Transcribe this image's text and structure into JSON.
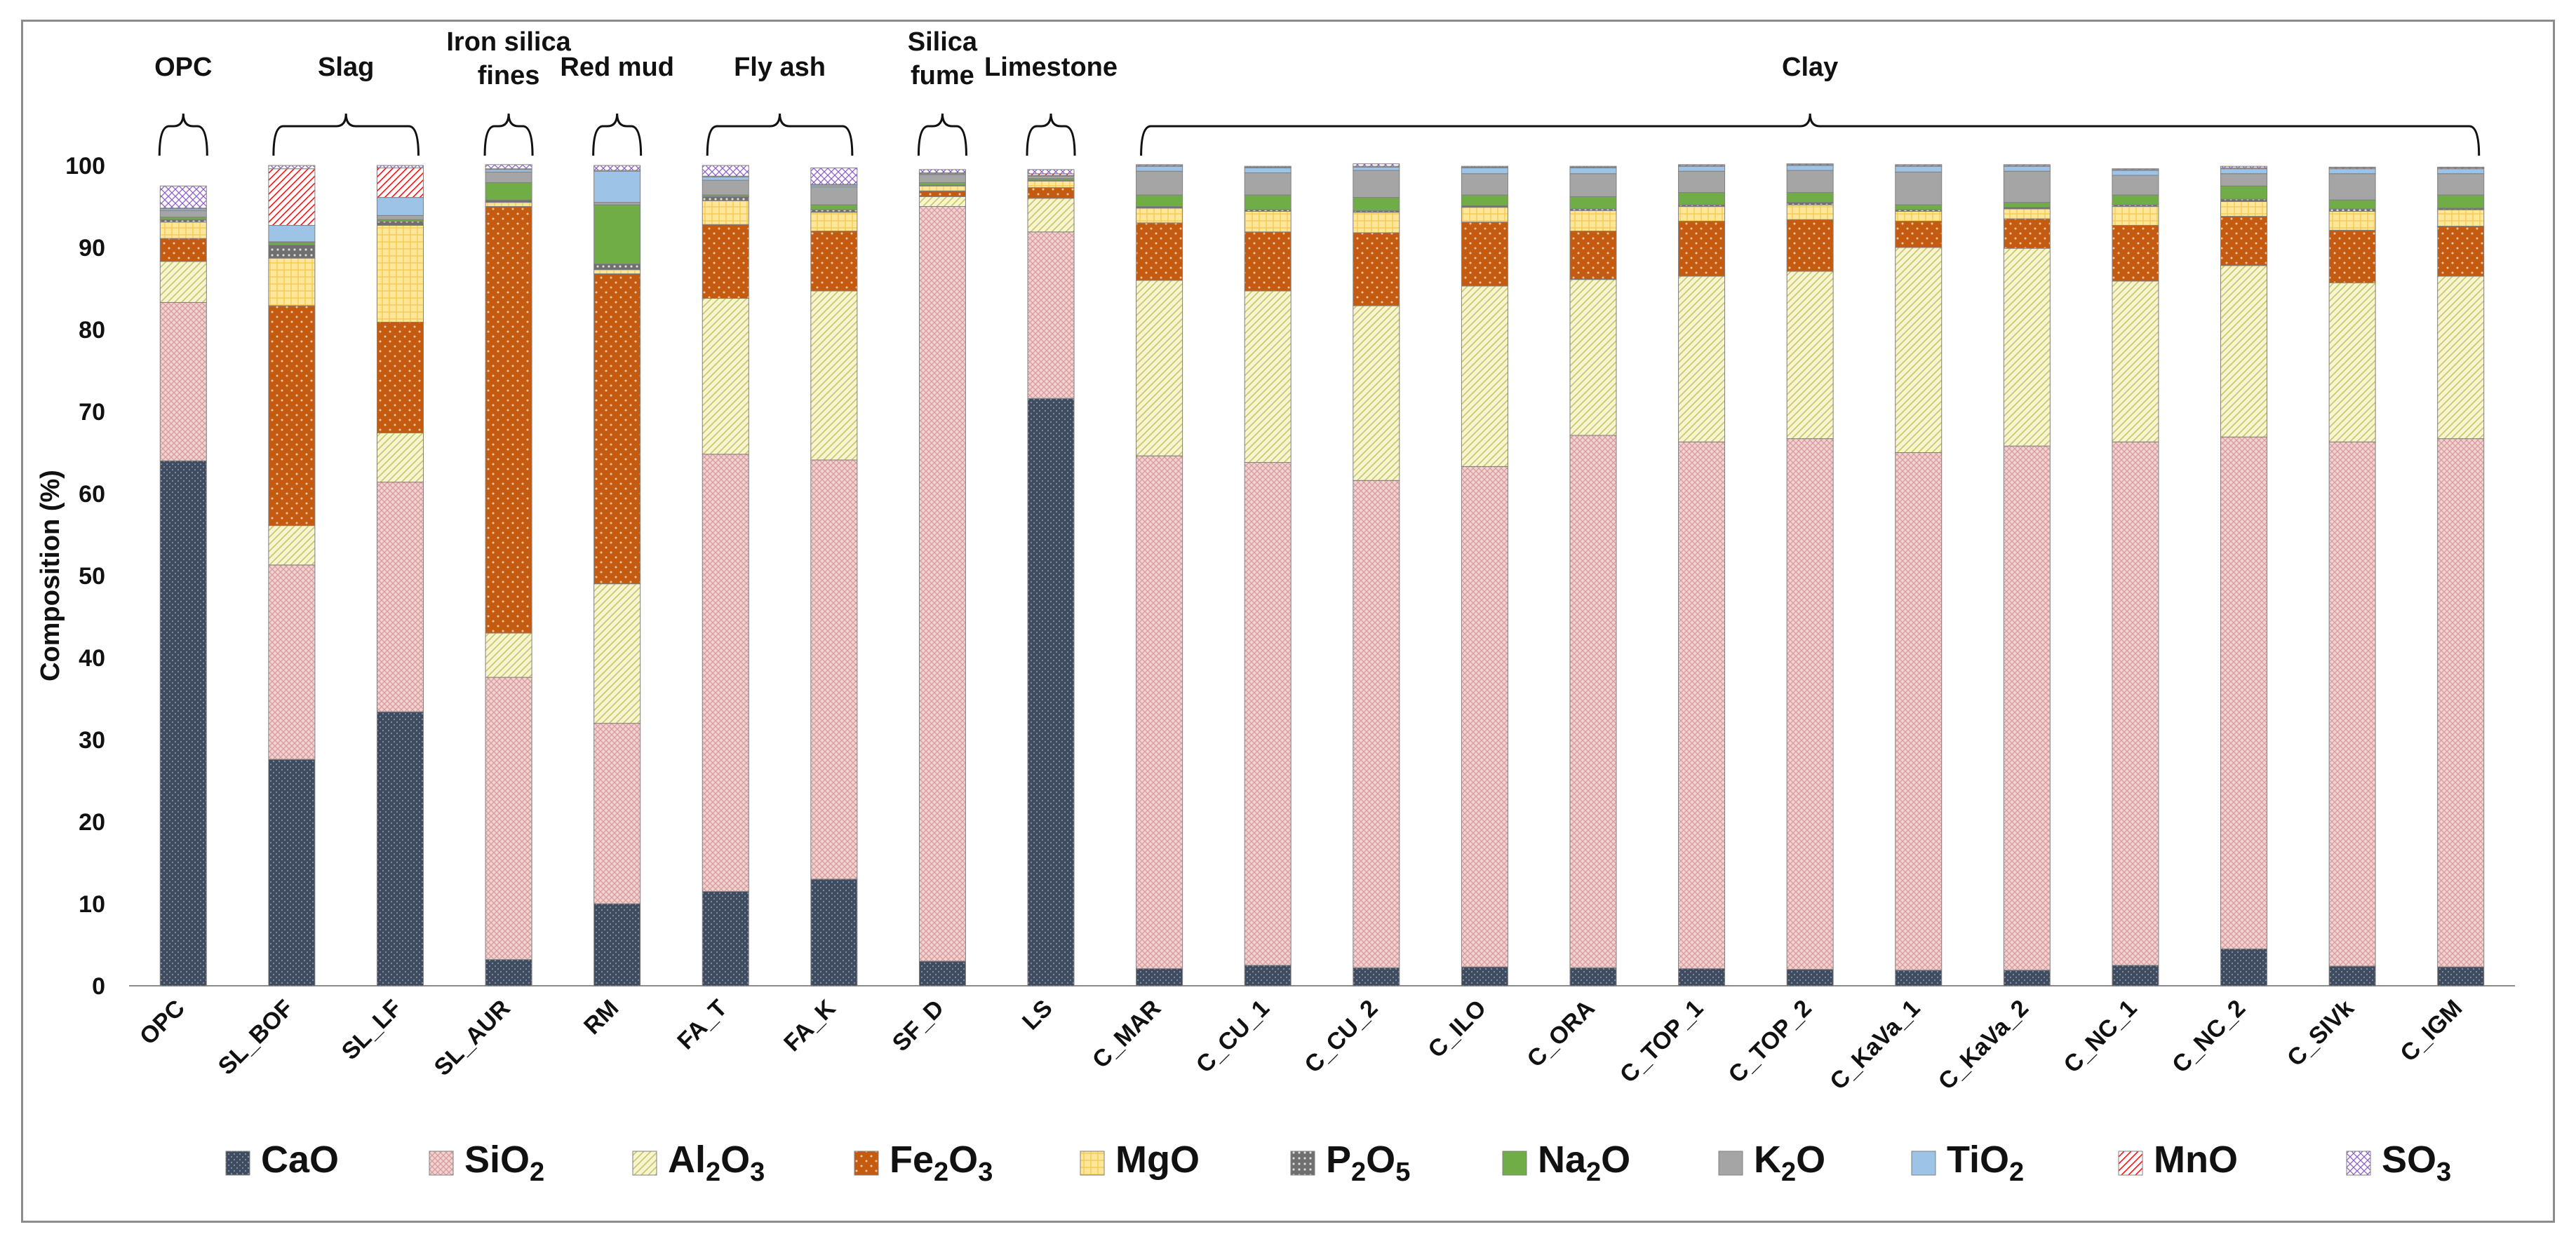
{
  "chart_data": {
    "type": "bar",
    "stacked": true,
    "ylabel": "Composition (%)",
    "ylim": [
      0,
      100
    ],
    "yticks": [
      0,
      10,
      20,
      30,
      40,
      50,
      60,
      70,
      80,
      90,
      100
    ],
    "categories": [
      "OPC",
      "SL_BOF",
      "SL_LF",
      "SL_AUR",
      "RM",
      "FA_T",
      "FA_K",
      "SF_D",
      "LS",
      "C_MAR",
      "C_CU_1",
      "C_CU_2",
      "C_ILO",
      "C_ORA",
      "C_TOP_1",
      "C_TOP_2",
      "C_KaVa_1",
      "C_KaVa_2",
      "C_NC_1",
      "C_NC_2",
      "C_SIVk",
      "C_IGM"
    ],
    "groups": [
      {
        "label": "OPC",
        "lines": [
          "OPC"
        ],
        "from": 0,
        "to": 0
      },
      {
        "label": "Slag",
        "lines": [
          "Slag"
        ],
        "from": 1,
        "to": 2
      },
      {
        "label": "Iron silica fines",
        "lines": [
          "Iron silica",
          "fines"
        ],
        "from": 3,
        "to": 3
      },
      {
        "label": "Red mud",
        "lines": [
          "Red mud"
        ],
        "from": 4,
        "to": 4
      },
      {
        "label": "Fly ash",
        "lines": [
          "Fly ash"
        ],
        "from": 5,
        "to": 6
      },
      {
        "label": "Silica fume",
        "lines": [
          "Silica",
          "fume"
        ],
        "from": 7,
        "to": 7
      },
      {
        "label": "Limestone",
        "lines": [
          "Limestone"
        ],
        "from": 8,
        "to": 8
      },
      {
        "label": "Clay",
        "lines": [
          "Clay"
        ],
        "from": 9,
        "to": 21
      }
    ],
    "series": [
      {
        "name": "CaO",
        "base": "CaO",
        "sub": "",
        "color": "#44546a",
        "pattern": "dots",
        "values": [
          64.0,
          27.6,
          33.4,
          3.2,
          10.0,
          11.5,
          13.0,
          3.0,
          71.6,
          2.1,
          2.5,
          2.2,
          2.3,
          2.2,
          2.1,
          2.0,
          1.9,
          1.9,
          2.5,
          4.5,
          2.4,
          2.3
        ]
      },
      {
        "name": "SiO2",
        "base": "SiO",
        "sub": "2",
        "color": "#e6b9b8",
        "pattern": "crosshatch",
        "values": [
          19.3,
          23.7,
          28.0,
          34.4,
          22.0,
          53.3,
          51.1,
          92.0,
          20.3,
          62.5,
          61.3,
          59.4,
          61.0,
          64.9,
          64.2,
          64.7,
          63.1,
          63.9,
          63.8,
          62.4,
          63.9,
          64.4
        ]
      },
      {
        "name": "Al2O3",
        "base": "Al",
        "sub": "2",
        "base2": "O",
        "sub2": "3",
        "color": "#f1ee9a",
        "pattern": "diagonal",
        "values": [
          5.0,
          4.8,
          6.0,
          5.4,
          17.0,
          19.0,
          20.6,
          1.2,
          4.1,
          21.4,
          20.9,
          21.3,
          22.0,
          19.0,
          20.2,
          20.4,
          25.0,
          24.1,
          19.6,
          20.9,
          19.4,
          19.8
        ]
      },
      {
        "name": "Fe2O3",
        "base": "Fe",
        "sub": "2",
        "base2": "O",
        "sub2": "3",
        "color": "#c55a11",
        "pattern": "sparkdots",
        "values": [
          2.8,
          26.8,
          13.5,
          52.0,
          37.8,
          9.0,
          7.3,
          0.7,
          1.3,
          7.0,
          7.2,
          8.9,
          7.8,
          5.9,
          6.7,
          6.3,
          3.2,
          3.6,
          6.8,
          6.0,
          6.4,
          6.1
        ]
      },
      {
        "name": "MgO",
        "base": "MgO",
        "sub": "",
        "color": "#ffe699",
        "pattern": "grid",
        "values": [
          2.0,
          5.8,
          11.8,
          0.5,
          0.5,
          2.9,
          2.3,
          0.6,
          0.8,
          1.8,
          2.5,
          2.5,
          1.8,
          2.5,
          1.8,
          1.8,
          1.2,
          1.2,
          2.3,
          1.8,
          2.3,
          2.0
        ]
      },
      {
        "name": "P2O5",
        "base": "P",
        "sub": "2",
        "base2": "O",
        "sub2": "5",
        "color": "#7f7f7f",
        "pattern": "dotsw",
        "values": [
          0.3,
          1.6,
          0.5,
          0.3,
          0.7,
          0.5,
          0.3,
          0.1,
          0.1,
          0.2,
          0.2,
          0.2,
          0.2,
          0.2,
          0.2,
          0.3,
          0.2,
          0.2,
          0.2,
          0.3,
          0.3,
          0.2
        ]
      },
      {
        "name": "Na2O",
        "base": "Na",
        "sub": "2",
        "base2": "O",
        "sub2": "",
        "color": "#70ad47",
        "pattern": "solid",
        "values": [
          0.3,
          0.3,
          0.2,
          2.1,
          7.2,
          0.2,
          0.6,
          0.3,
          0.2,
          1.4,
          1.8,
          1.6,
          1.3,
          1.5,
          1.5,
          1.2,
          0.6,
          0.6,
          1.2,
          1.6,
          1.1,
          1.6
        ]
      },
      {
        "name": "K2O",
        "base": "K",
        "sub": "2",
        "base2": "O",
        "sub2": "",
        "color": "#a5a5a5",
        "pattern": "solid",
        "values": [
          0.8,
          0.1,
          0.5,
          1.3,
          0.3,
          1.8,
          2.2,
          1.0,
          0.3,
          2.9,
          2.7,
          3.3,
          2.6,
          2.8,
          2.6,
          2.7,
          4.0,
          3.8,
          2.4,
          1.5,
          3.2,
          2.6
        ]
      },
      {
        "name": "TiO2",
        "base": "TiO",
        "sub": "2",
        "color": "#9dc3e6",
        "pattern": "solid",
        "values": [
          0.2,
          2.0,
          2.2,
          0.3,
          3.8,
          0.4,
          0.2,
          0.1,
          0.1,
          0.6,
          0.6,
          0.4,
          0.7,
          0.7,
          0.6,
          0.6,
          0.7,
          0.6,
          0.6,
          0.6,
          0.6,
          0.6
        ]
      },
      {
        "name": "MnO",
        "base": "MnO",
        "sub": "",
        "color": "#ff0000",
        "pattern": "redhatch",
        "values": [
          0.1,
          6.9,
          3.6,
          0.1,
          0.1,
          0.1,
          0.1,
          0.1,
          0.2,
          0.1,
          0.1,
          0.1,
          0.1,
          0.1,
          0.1,
          0.1,
          0.1,
          0.1,
          0.1,
          0.1,
          0.1,
          0.1
        ]
      },
      {
        "name": "SO3",
        "base": "SO",
        "sub": "3",
        "color": "#9966cc",
        "pattern": "purple",
        "values": [
          2.7,
          0.4,
          0.3,
          0.5,
          0.6,
          1.3,
          2.0,
          0.4,
          0.5,
          0.1,
          0.1,
          0.3,
          0.1,
          0.1,
          0.1,
          0.1,
          0.1,
          0.1,
          0.1,
          0.2,
          0.1,
          0.1
        ]
      }
    ]
  }
}
